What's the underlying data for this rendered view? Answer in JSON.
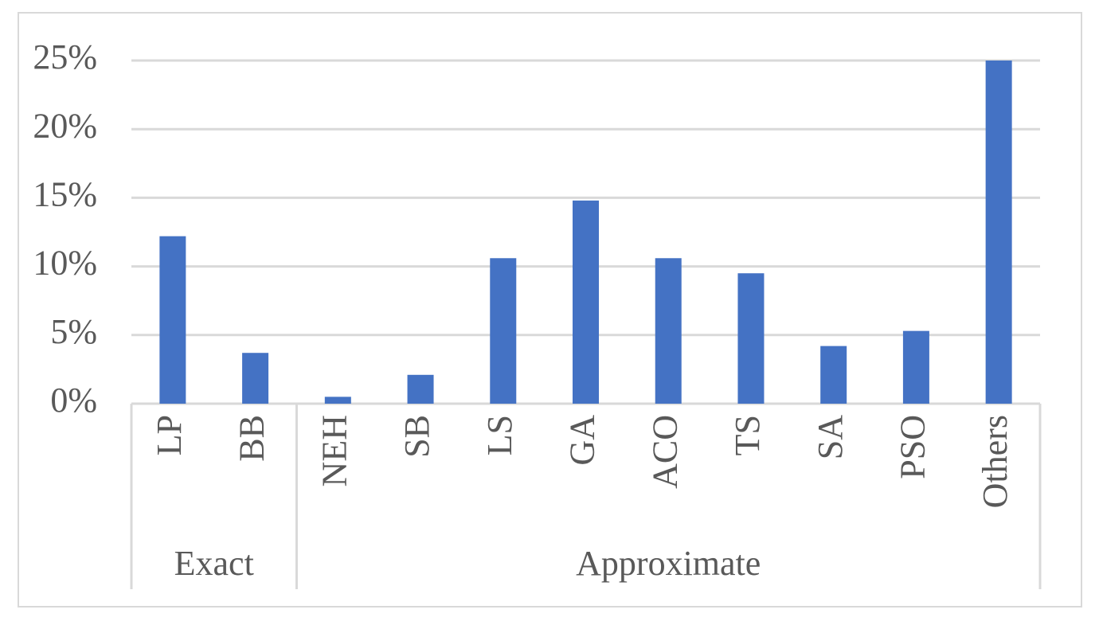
{
  "chart_data": {
    "type": "bar",
    "categories": [
      "LP",
      "BB",
      "NEH",
      "SB",
      "LS",
      "GA",
      "ACO",
      "TS",
      "SA",
      "PSO",
      "Others"
    ],
    "groups": [
      {
        "name": "Exact",
        "size": 2
      },
      {
        "name": "Approximate",
        "size": 9
      }
    ],
    "values": [
      12.2,
      3.7,
      0.5,
      2.1,
      10.6,
      14.8,
      10.6,
      9.5,
      4.2,
      5.3,
      25.0
    ],
    "color": "#4472c4",
    "ylim": [
      0,
      25
    ],
    "yticks": [
      {
        "value": 0,
        "label": "0%"
      },
      {
        "value": 5,
        "label": "5%"
      },
      {
        "value": 10,
        "label": "10%"
      },
      {
        "value": 15,
        "label": "15%"
      },
      {
        "value": 20,
        "label": "20%"
      },
      {
        "value": 25,
        "label": "25%"
      }
    ],
    "grid": true
  }
}
